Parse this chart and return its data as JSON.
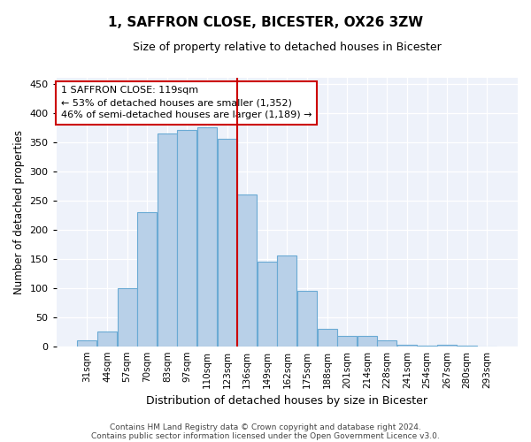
{
  "title": "1, SAFFRON CLOSE, BICESTER, OX26 3ZW",
  "subtitle": "Size of property relative to detached houses in Bicester",
  "xlabel": "Distribution of detached houses by size in Bicester",
  "ylabel": "Number of detached properties",
  "bar_labels": [
    "31sqm",
    "44sqm",
    "57sqm",
    "70sqm",
    "83sqm",
    "97sqm",
    "110sqm",
    "123sqm",
    "136sqm",
    "149sqm",
    "162sqm",
    "175sqm",
    "188sqm",
    "201sqm",
    "214sqm",
    "228sqm",
    "241sqm",
    "254sqm",
    "267sqm",
    "280sqm",
    "293sqm"
  ],
  "bar_heights": [
    10,
    25,
    100,
    230,
    365,
    370,
    375,
    355,
    260,
    145,
    155,
    95,
    30,
    18,
    17,
    10,
    3,
    1,
    3,
    1,
    0
  ],
  "bar_color": "#b8d0e8",
  "bar_edgecolor": "#6aaad4",
  "vline_color": "#cc0000",
  "vline_position": 7.5,
  "annotation_text": "1 SAFFRON CLOSE: 119sqm\n← 53% of detached houses are smaller (1,352)\n46% of semi-detached houses are larger (1,189) →",
  "annotation_box_color": "#ffffff",
  "annotation_box_edgecolor": "#cc0000",
  "ylim": [
    0,
    460
  ],
  "yticks": [
    0,
    50,
    100,
    150,
    200,
    250,
    300,
    350,
    400,
    450
  ],
  "bg_color": "#eef2fa",
  "footer1": "Contains HM Land Registry data © Crown copyright and database right 2024.",
  "footer2": "Contains public sector information licensed under the Open Government Licence v3.0."
}
